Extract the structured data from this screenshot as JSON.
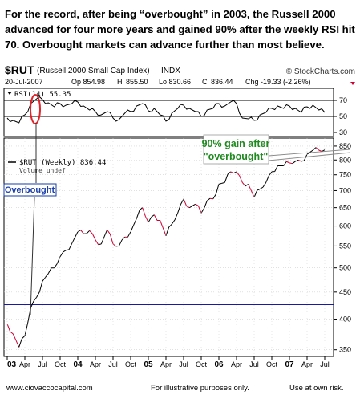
{
  "headline": "For the record, after being “overbought” in 2003, the Russell 2000 advanced for four more years and gained 90% after the weekly RSI hit 70.  Overbought markets can advance further than most believe.",
  "chart_data": {
    "type": "line",
    "symbol": "$RUT",
    "name": "(Russell 2000 Small Cap Index)",
    "exchange": "INDX",
    "watermark": "© StockCharts.com",
    "date": "20-Jul-2007",
    "quote": {
      "open": "Op 854.98",
      "high": "Hi 855.50",
      "low": "Lo 830.66",
      "close": "Cl 836.44",
      "change": "Chg -19.33 (-2.26%)"
    },
    "colors": {
      "price_up": "#000000",
      "price_down": "#cc0033",
      "hline": "#1a1aa0",
      "annotation": "#1f8a1f",
      "label_blue": "#1a3fa8",
      "highlight": "#e0242a",
      "change_red": "#cc0033"
    },
    "rsi_panel": {
      "legend": "RSI(14) 55.35",
      "ticks": [
        "70",
        "50",
        "30"
      ],
      "range": [
        25,
        85
      ],
      "levels": [
        70,
        50
      ],
      "x": [
        "2003-01",
        "2003-02",
        "2003-03",
        "2003-04",
        "2003-05",
        "2003-06",
        "2003-07",
        "2003-08",
        "2003-09",
        "2003-10",
        "2003-11",
        "2003-12",
        "2004-01",
        "2004-02",
        "2004-03",
        "2004-04",
        "2004-05",
        "2004-06",
        "2004-07",
        "2004-08",
        "2004-09",
        "2004-10",
        "2004-11",
        "2004-12",
        "2005-01",
        "2005-02",
        "2005-03",
        "2005-04",
        "2005-05",
        "2005-06",
        "2005-07",
        "2005-08",
        "2005-09",
        "2005-10",
        "2005-11",
        "2005-12",
        "2006-01",
        "2006-02",
        "2006-03",
        "2006-04",
        "2006-05",
        "2006-06",
        "2006-07",
        "2006-08",
        "2006-09",
        "2006-10",
        "2006-11",
        "2006-12",
        "2007-01",
        "2007-02",
        "2007-03",
        "2007-04",
        "2007-05",
        "2007-06",
        "2007-07"
      ],
      "values": [
        48,
        45,
        42,
        52,
        66,
        72,
        71,
        67,
        62,
        66,
        64,
        66,
        68,
        63,
        58,
        56,
        52,
        56,
        48,
        46,
        54,
        56,
        63,
        66,
        57,
        60,
        52,
        44,
        54,
        60,
        64,
        60,
        56,
        50,
        58,
        60,
        66,
        63,
        68,
        66,
        48,
        47,
        45,
        52,
        55,
        60,
        63,
        60,
        63,
        60,
        55,
        62,
        64,
        58,
        55
      ]
    },
    "price_panel": {
      "legend": "$RUT (Weekly) 836.44",
      "legend_sub": "Volume undef",
      "log_scale": true,
      "y_ticks": [
        "850",
        "800",
        "750",
        "700",
        "650",
        "600",
        "550",
        "500",
        "450",
        "400",
        "350"
      ],
      "y_range": [
        340,
        880
      ],
      "x": [
        "2003-01",
        "2003-02",
        "2003-03",
        "2003-04",
        "2003-05",
        "2003-06",
        "2003-07",
        "2003-08",
        "2003-09",
        "2003-10",
        "2003-11",
        "2003-12",
        "2004-01",
        "2004-02",
        "2004-03",
        "2004-04",
        "2004-05",
        "2004-06",
        "2004-07",
        "2004-08",
        "2004-09",
        "2004-10",
        "2004-11",
        "2004-12",
        "2005-01",
        "2005-02",
        "2005-03",
        "2005-04",
        "2005-05",
        "2005-06",
        "2005-07",
        "2005-08",
        "2005-09",
        "2005-10",
        "2005-11",
        "2005-12",
        "2006-01",
        "2006-02",
        "2006-03",
        "2006-04",
        "2006-05",
        "2006-06",
        "2006-07",
        "2006-08",
        "2006-09",
        "2006-10",
        "2006-11",
        "2006-12",
        "2007-01",
        "2007-02",
        "2007-03",
        "2007-04",
        "2007-05",
        "2007-06",
        "2007-07"
      ],
      "values": [
        392,
        375,
        354,
        372,
        420,
        440,
        472,
        488,
        500,
        525,
        540,
        556,
        585,
        580,
        588,
        565,
        555,
        590,
        555,
        550,
        572,
        585,
        620,
        650,
        610,
        630,
        615,
        575,
        605,
        635,
        675,
        650,
        660,
        635,
        670,
        675,
        720,
        725,
        760,
        760,
        725,
        720,
        680,
        705,
        725,
        760,
        780,
        780,
        790,
        795,
        795,
        820,
        835,
        835,
        836
      ],
      "reference_line": 426
    },
    "x_axis_labels": [
      "03",
      "Apr",
      "Jul",
      "Oct",
      "04",
      "Apr",
      "Jul",
      "Oct",
      "05",
      "Apr",
      "Jul",
      "Oct",
      "06",
      "Apr",
      "Jul",
      "Oct",
      "07",
      "Apr",
      "Jul"
    ],
    "annotations": {
      "gain": [
        "90% gain after",
        "\"overbought\""
      ],
      "overbought": "Overbought"
    }
  },
  "footer": {
    "site": "www.ciovaccocapital.com",
    "illustrative": "For illustrative purposes only.",
    "risk": "Use at own risk."
  }
}
